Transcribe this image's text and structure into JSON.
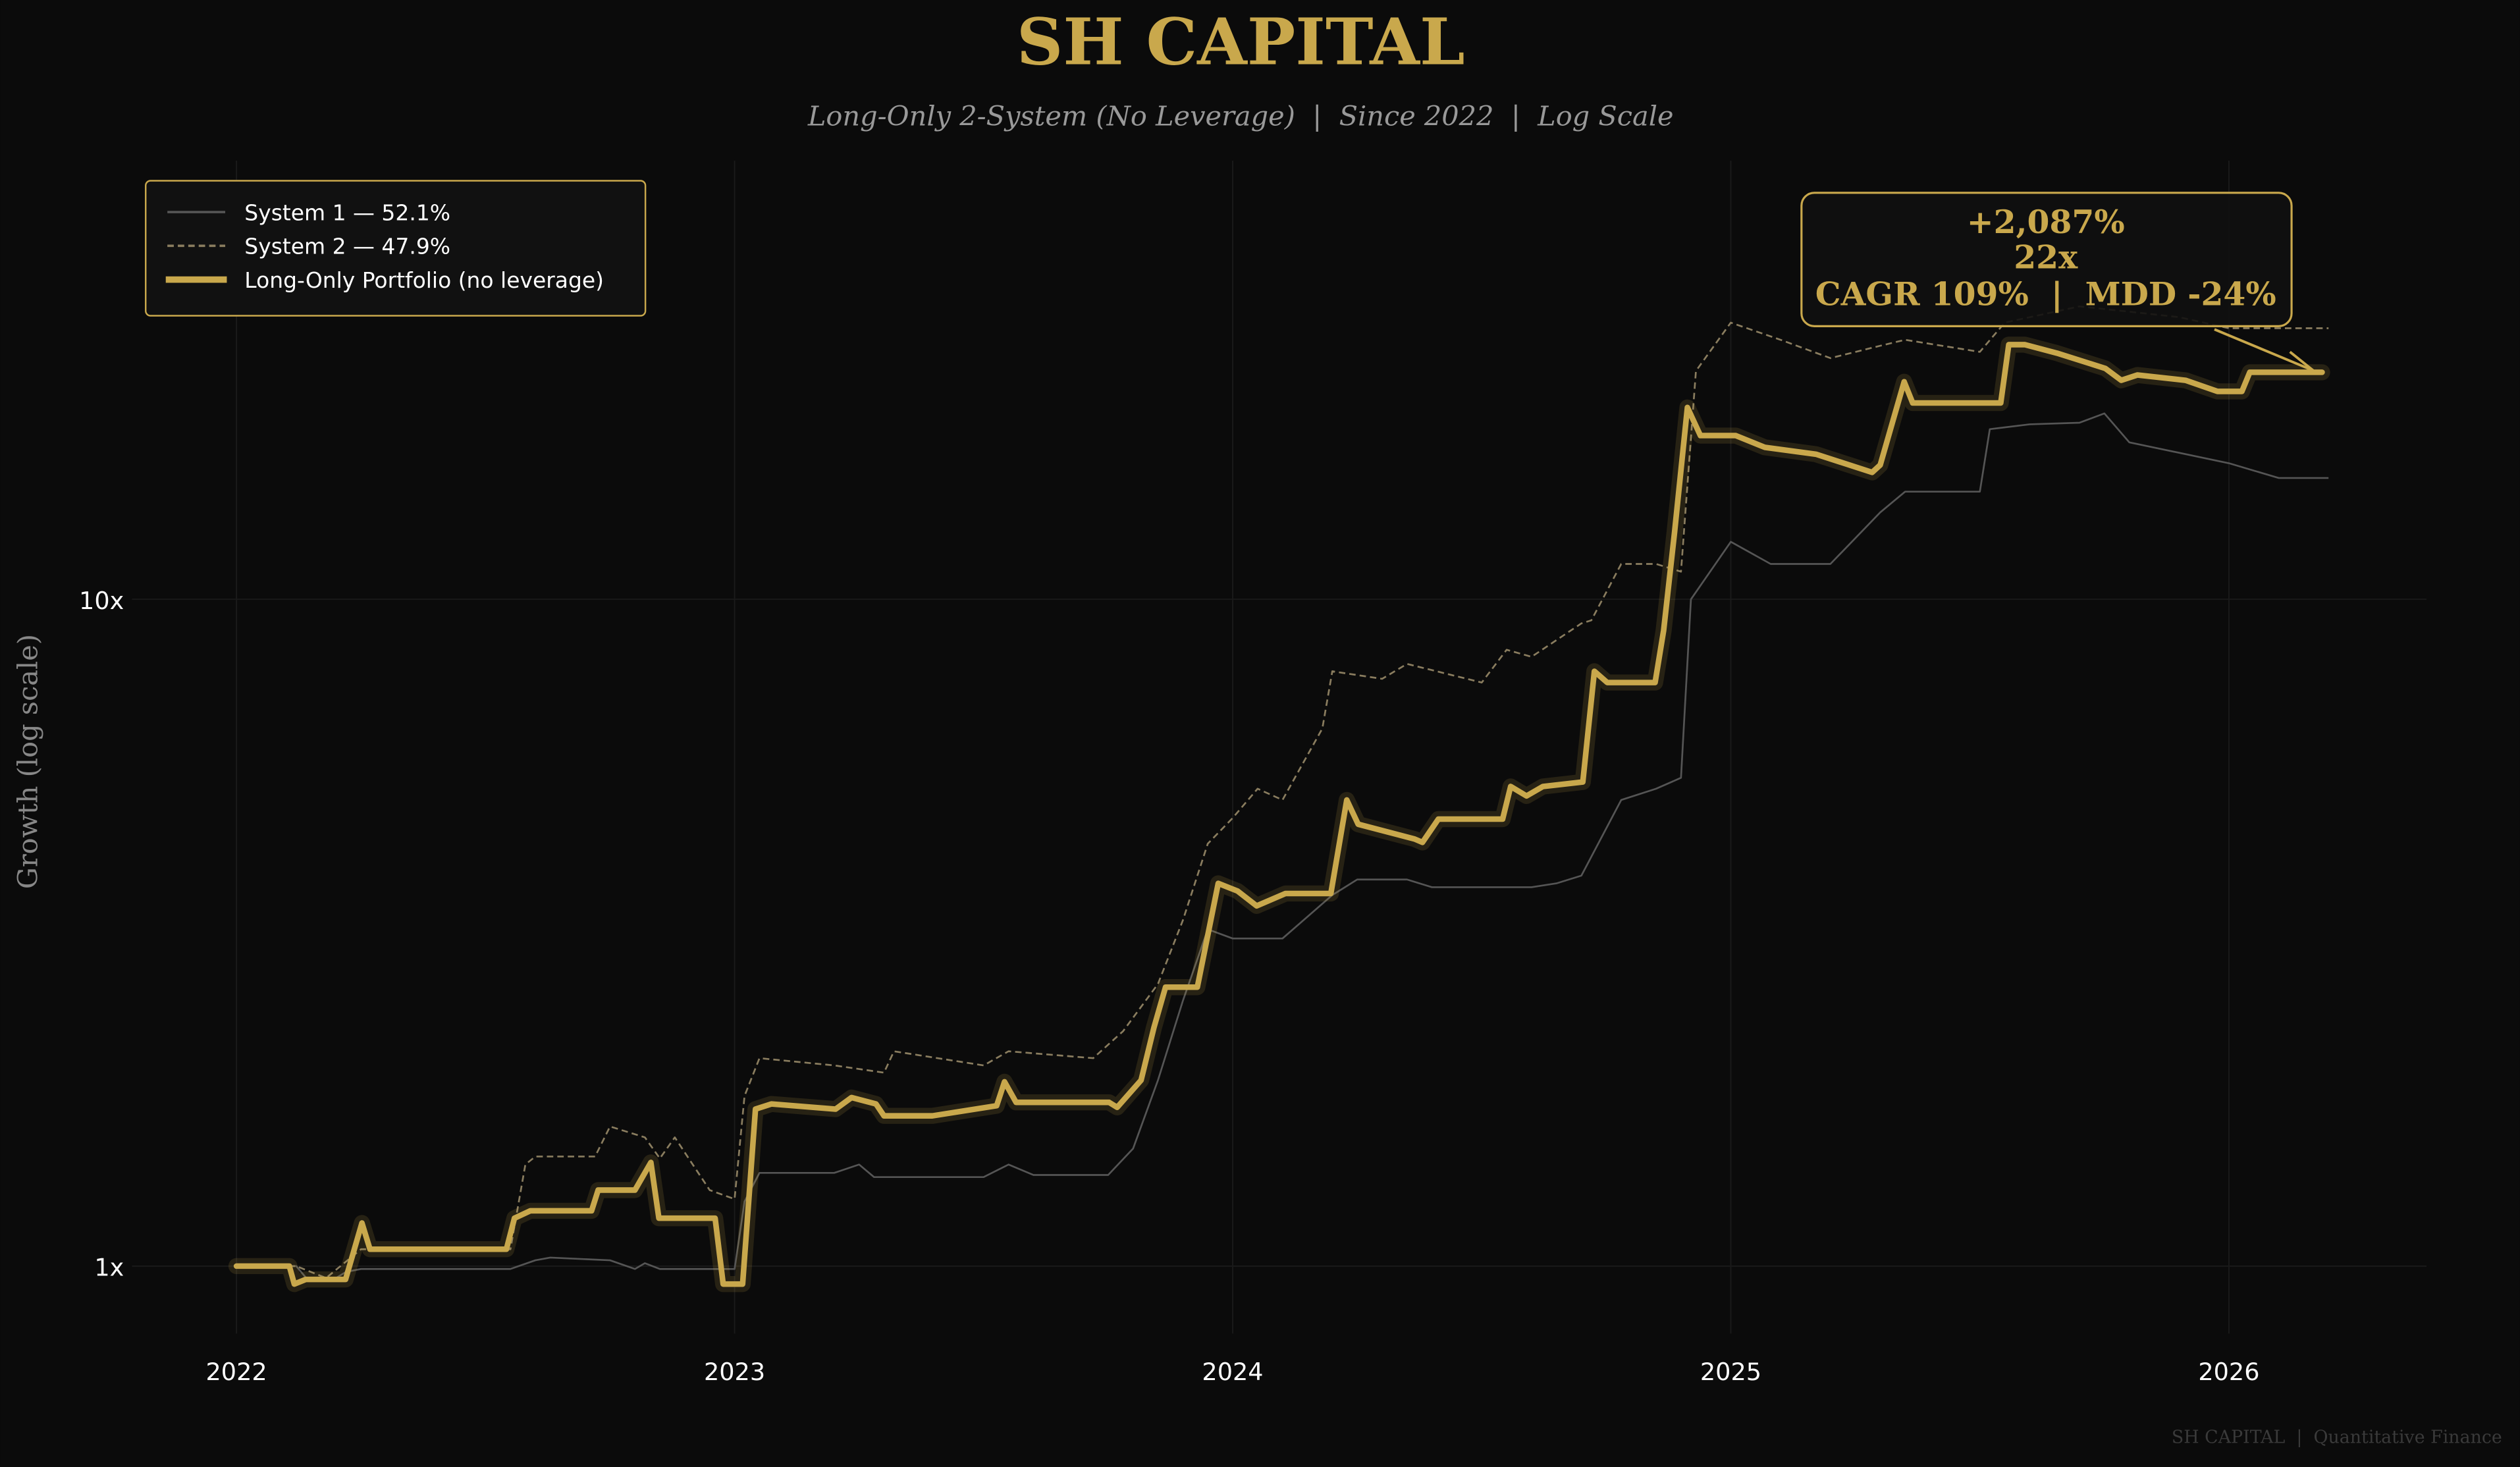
{
  "header": {
    "title": "SH CAPITAL",
    "subtitle": "Long-Only 2-System (No Leverage)  |  Since 2022  |  Log Scale"
  },
  "footer": {
    "watermark": "SH CAPITAL  |  Quantitative Finance"
  },
  "colors": {
    "background": "#0b0b0b",
    "gold": "#c9a84c",
    "system1": "#555555",
    "system2": "#8a7d5f",
    "text": "#ffffff",
    "muted": "#999999",
    "grid": "#1a1a1a"
  },
  "legend": {
    "items": [
      {
        "label": "System 1 — 52.1%",
        "style": "solid-gray"
      },
      {
        "label": "System 2 — 47.9%",
        "style": "dashed-tan"
      },
      {
        "label": "Long-Only Portfolio (no leverage)",
        "style": "thick-gold"
      }
    ]
  },
  "annotation": {
    "line1": "+2,087%",
    "line2": "22x",
    "line3": "CAGR 109%  |  MDD -24%"
  },
  "axes": {
    "ylabel": "Growth (log scale)",
    "yticks": [
      "1x",
      "10x"
    ],
    "xticks": [
      "2022",
      "2023",
      "2024",
      "2025",
      "2026"
    ]
  },
  "chart_data": {
    "type": "line",
    "title": "SH CAPITAL",
    "subtitle": "Long-Only 2-System (No Leverage) | Since 2022 | Log Scale",
    "xlabel": "",
    "ylabel": "Growth (log scale)",
    "yscale": "log",
    "ylim": [
      0.82,
      38
    ],
    "xlim": [
      2021.8,
      2026.4
    ],
    "x_ticks": [
      2022,
      2023,
      2024,
      2025,
      2026
    ],
    "y_ticks": [
      {
        "value": 1,
        "label": "1x"
      },
      {
        "value": 10,
        "label": "10x"
      }
    ],
    "grid": true,
    "legend_position": "upper left",
    "series": [
      {
        "name": "System 1 — 52.1%",
        "style": "solid",
        "x": [
          2022.0,
          2022.12,
          2022.14,
          2022.2,
          2022.22,
          2022.25,
          2022.55,
          2022.6,
          2022.63,
          2022.75,
          2022.8,
          2022.82,
          2022.85,
          2022.95,
          2023.0,
          2023.02,
          2023.05,
          2023.2,
          2023.25,
          2023.28,
          2023.5,
          2023.55,
          2023.6,
          2023.75,
          2023.8,
          2023.85,
          2023.9,
          2023.95,
          2024.0,
          2024.1,
          2024.2,
          2024.25,
          2024.35,
          2024.4,
          2024.6,
          2024.65,
          2024.7,
          2024.78,
          2024.85,
          2024.9,
          2024.92,
          2025.0,
          2025.08,
          2025.2,
          2025.3,
          2025.35,
          2025.5,
          2025.52,
          2025.6,
          2025.7,
          2025.75,
          2025.8,
          2026.0,
          2026.05,
          2026.1,
          2026.2
        ],
        "y": [
          1.0,
          1.0,
          0.96,
          0.96,
          0.98,
          0.99,
          0.99,
          1.02,
          1.03,
          1.02,
          0.99,
          1.01,
          0.99,
          0.99,
          0.99,
          1.25,
          1.38,
          1.38,
          1.42,
          1.36,
          1.36,
          1.42,
          1.37,
          1.37,
          1.5,
          1.9,
          2.5,
          3.2,
          3.1,
          3.1,
          3.6,
          3.8,
          3.8,
          3.7,
          3.7,
          3.75,
          3.85,
          5.0,
          5.2,
          5.4,
          10.0,
          12.2,
          11.3,
          11.3,
          13.5,
          14.5,
          14.5,
          18.0,
          18.3,
          18.4,
          19.0,
          17.2,
          16.0,
          15.6,
          15.2,
          15.2
        ]
      },
      {
        "name": "System 2 — 47.9%",
        "style": "dashed",
        "x": [
          2022.0,
          2022.12,
          2022.18,
          2022.25,
          2022.55,
          2022.58,
          2022.6,
          2022.72,
          2022.75,
          2022.82,
          2022.85,
          2022.88,
          2022.95,
          2023.0,
          2023.02,
          2023.05,
          2023.2,
          2023.3,
          2023.32,
          2023.5,
          2023.55,
          2023.72,
          2023.78,
          2023.85,
          2023.9,
          2023.95,
          2024.0,
          2024.05,
          2024.1,
          2024.18,
          2024.2,
          2024.3,
          2024.35,
          2024.5,
          2024.55,
          2024.6,
          2024.7,
          2024.72,
          2024.78,
          2024.85,
          2024.9,
          2024.93,
          2025.0,
          2025.1,
          2025.2,
          2025.3,
          2025.35,
          2025.5,
          2025.55,
          2025.7,
          2025.8,
          2025.9,
          2026.0,
          2026.1,
          2026.2
        ],
        "y": [
          1.0,
          1.0,
          0.96,
          1.06,
          1.06,
          1.42,
          1.46,
          1.46,
          1.62,
          1.56,
          1.45,
          1.56,
          1.3,
          1.26,
          1.8,
          2.05,
          2.0,
          1.95,
          2.1,
          2.0,
          2.1,
          2.05,
          2.25,
          2.65,
          3.3,
          4.3,
          4.7,
          5.2,
          5.0,
          6.4,
          7.8,
          7.6,
          8.0,
          7.5,
          8.4,
          8.2,
          9.2,
          9.3,
          11.3,
          11.3,
          11.0,
          22.0,
          26.0,
          24.5,
          23.0,
          24.0,
          24.5,
          23.5,
          26.0,
          27.5,
          27.0,
          26.5,
          25.5,
          25.5,
          25.5
        ]
      },
      {
        "name": "Long-Only Portfolio (no leverage)",
        "style": "thick",
        "x": [
          2022.0,
          2022.106,
          2022.116,
          2022.139,
          2022.219,
          2022.252,
          2022.268,
          2022.542,
          2022.558,
          2022.59,
          2022.713,
          2022.726,
          2022.8,
          2022.832,
          2022.848,
          2022.961,
          2022.977,
          2023.016,
          2023.042,
          2023.074,
          2023.203,
          2023.235,
          2023.284,
          2023.3,
          2023.397,
          2023.526,
          2023.542,
          2023.565,
          2023.752,
          2023.768,
          2023.816,
          2023.842,
          2023.865,
          2023.929,
          2023.971,
          2024.01,
          2024.048,
          2024.106,
          2024.197,
          2024.229,
          2024.252,
          2024.365,
          2024.381,
          2024.413,
          2024.445,
          2024.542,
          2024.558,
          2024.59,
          2024.623,
          2024.703,
          2024.726,
          2024.752,
          2024.848,
          2024.865,
          2024.887,
          2024.913,
          2024.939,
          2025.01,
          2025.068,
          2025.171,
          2025.284,
          2025.3,
          2025.326,
          2025.348,
          2025.365,
          2025.542,
          2025.558,
          2025.59,
          2025.655,
          2025.752,
          2025.784,
          2025.816,
          2025.913,
          2025.977,
          2026.026,
          2026.042,
          2026.187
        ],
        "y": [
          1.0,
          1.0,
          0.94,
          0.955,
          0.955,
          1.16,
          1.06,
          1.06,
          1.18,
          1.21,
          1.21,
          1.3,
          1.3,
          1.43,
          1.18,
          1.18,
          0.94,
          0.94,
          1.72,
          1.75,
          1.72,
          1.79,
          1.75,
          1.68,
          1.68,
          1.74,
          1.89,
          1.76,
          1.76,
          1.73,
          1.9,
          2.28,
          2.62,
          2.62,
          3.75,
          3.65,
          3.47,
          3.62,
          3.62,
          5.0,
          4.6,
          4.37,
          4.32,
          4.68,
          4.68,
          4.68,
          5.24,
          5.07,
          5.24,
          5.32,
          7.8,
          7.5,
          7.5,
          8.98,
          12.6,
          19.4,
          17.6,
          17.6,
          16.9,
          16.5,
          15.5,
          15.9,
          18.6,
          21.2,
          19.7,
          19.7,
          24.1,
          24.1,
          23.4,
          22.2,
          21.3,
          21.7,
          21.3,
          20.5,
          20.5,
          21.9,
          21.9
        ]
      }
    ],
    "annotations": [
      {
        "text": "+2,087%\n22x\nCAGR 109%  |  MDD -24%",
        "arrow_to": {
          "x": 2026.19,
          "y": 21.9
        }
      }
    ]
  }
}
